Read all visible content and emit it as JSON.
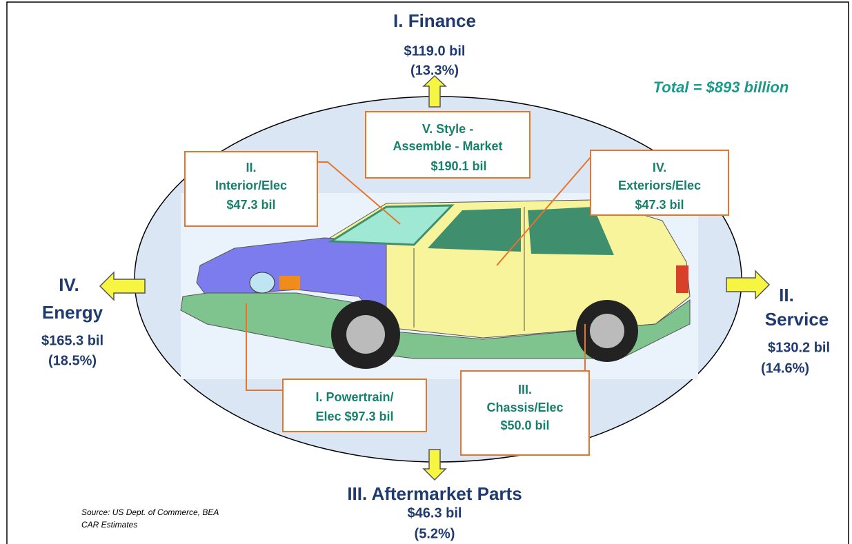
{
  "total": "Total = $893 billion",
  "outer": [
    {
      "title": [
        "I. Finance"
      ],
      "value": "$119.0 bil",
      "share": "(13.3%)"
    },
    {
      "title": [
        "IV.",
        "Energy"
      ],
      "value": "$165.3 bil",
      "share": "(18.5%)"
    },
    {
      "title": [
        "II.",
        "Service"
      ],
      "value": "$130.2 bil",
      "share": "(14.6%)"
    },
    {
      "title": [
        "III. Aftermarket Parts"
      ],
      "value": "$46.3 bil",
      "share": "(5.2%)"
    }
  ],
  "boxes": [
    {
      "lines": [
        "V.   Style -",
        "Assemble - Market",
        "$190.1 bil"
      ]
    },
    {
      "lines": [
        "II.",
        "Interior/Elec",
        "$47.3 bil"
      ]
    },
    {
      "lines": [
        "IV.",
        "Exteriors/Elec",
        "$47.3 bil"
      ]
    },
    {
      "lines": [
        "I.  Powertrain/",
        "Elec  $97.3 bil"
      ]
    },
    {
      "lines": [
        "III.",
        "Chassis/Elec",
        "$50.0 bil"
      ]
    }
  ],
  "source": [
    "Source: US Dept. of Commerce, BEA",
    "CAR Estimates"
  ]
}
